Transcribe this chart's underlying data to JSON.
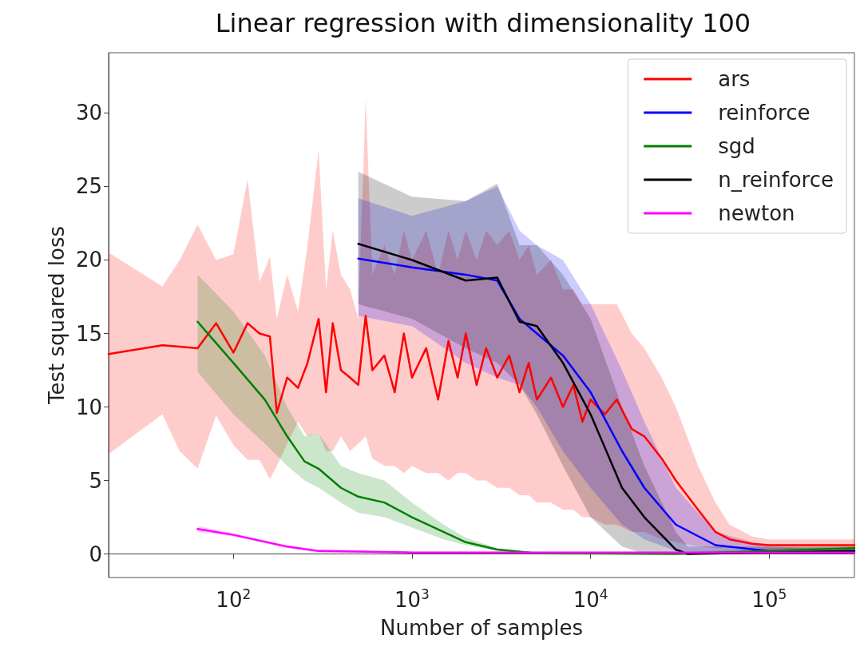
{
  "chart_data": {
    "type": "line",
    "title": "Linear regression with dimensionality 100",
    "xlabel": "Number of samples",
    "ylabel": "Test squared loss",
    "log": "x",
    "legend": "top right",
    "xlim": [
      20,
      300000
    ],
    "xticks": [
      {
        "value": 100,
        "label": "10$^{2}$"
      },
      {
        "value": 1000,
        "label": "10$^{3}$"
      },
      {
        "value": 10000,
        "label": "10$^{4}$"
      },
      {
        "value": 100000,
        "label": "10$^{5}$"
      }
    ],
    "ylim": [
      -1.6,
      34.1
    ],
    "yticks": [
      0,
      5,
      10,
      15,
      20,
      25,
      30
    ],
    "series": [
      {
        "name": "ars",
        "color": "#ff0000",
        "x": [
          20,
          40,
          50,
          63,
          80,
          100,
          120,
          140,
          160,
          175,
          200,
          230,
          260,
          300,
          330,
          360,
          400,
          450,
          500,
          550,
          600,
          700,
          800,
          900,
          1000,
          1200,
          1400,
          1600,
          1800,
          2000,
          2300,
          2600,
          3000,
          3500,
          4000,
          4500,
          5000,
          6000,
          7000,
          8000,
          9000,
          10000,
          12000,
          14000,
          17000,
          20000,
          25000,
          30000,
          40000,
          50000,
          60000,
          80000,
          100000,
          150000,
          200000,
          300000
        ],
        "values": [
          13.6,
          14.2,
          14.1,
          14.0,
          15.7,
          13.7,
          15.7,
          15.0,
          14.8,
          9.6,
          12.0,
          11.3,
          13.0,
          16.0,
          11.0,
          15.7,
          12.5,
          12.0,
          11.5,
          16.2,
          12.5,
          13.5,
          11.0,
          15.0,
          12.0,
          14.0,
          10.5,
          14.5,
          12.0,
          15.0,
          11.5,
          14.0,
          12.0,
          13.5,
          11.0,
          13.0,
          10.5,
          12.0,
          10.0,
          11.5,
          9.0,
          10.5,
          9.5,
          10.5,
          8.5,
          8.0,
          6.5,
          5.0,
          3.0,
          1.5,
          1.0,
          0.7,
          0.6,
          0.6,
          0.6,
          0.6
        ],
        "lower": [
          6.8,
          9.5,
          7.0,
          5.8,
          9.4,
          7.4,
          6.4,
          6.4,
          5.1,
          6.0,
          7.5,
          9.0,
          8.0,
          8.2,
          7.0,
          7.0,
          8.0,
          7.0,
          7.5,
          8.0,
          6.5,
          6.0,
          6.0,
          5.5,
          6.0,
          5.5,
          5.5,
          5.0,
          5.5,
          5.5,
          5.0,
          5.0,
          4.5,
          4.5,
          4.0,
          4.0,
          3.5,
          3.5,
          3.0,
          3.0,
          2.5,
          2.5,
          2.0,
          2.0,
          1.5,
          1.5,
          1.0,
          0.8,
          0.5,
          0.4,
          0.4,
          0.3,
          0.3,
          0.3,
          0.3,
          0.3
        ],
        "upper": [
          20.5,
          18.2,
          20.0,
          22.4,
          20.0,
          20.4,
          25.5,
          18.5,
          20.2,
          16.0,
          19.0,
          16.5,
          21.0,
          27.5,
          18.0,
          22.0,
          19.0,
          18.0,
          16.0,
          31.0,
          19.0,
          21.0,
          19.0,
          22.0,
          20.0,
          22.0,
          19.0,
          22.0,
          20.0,
          22.0,
          20.0,
          22.0,
          21.0,
          22.0,
          20.0,
          21.0,
          19.0,
          20.0,
          18.0,
          18.0,
          17.0,
          17.0,
          17.0,
          17.0,
          15.0,
          14.0,
          12.0,
          10.0,
          6.0,
          3.5,
          2.0,
          1.2,
          1.0,
          1.0,
          1.0,
          1.0
        ]
      },
      {
        "name": "reinforce",
        "color": "#0000ff",
        "x": [
          500,
          1000,
          2000,
          3000,
          4000,
          5000,
          7000,
          10000,
          15000,
          20000,
          30000,
          50000,
          100000,
          300000
        ],
        "values": [
          20.1,
          19.5,
          19.0,
          18.6,
          16.0,
          15.0,
          13.5,
          11.0,
          7.0,
          4.5,
          2.0,
          0.6,
          0.2,
          null
        ],
        "lower": [
          16.2,
          15.5,
          13.0,
          12.0,
          11.5,
          10.0,
          7.0,
          4.5,
          2.0,
          1.0,
          0.2,
          0.1,
          0.0,
          0.0
        ],
        "upper": [
          24.2,
          23.0,
          24.0,
          25.0,
          22.0,
          21.0,
          20.0,
          17.0,
          12.5,
          9.0,
          4.5,
          1.5,
          0.5,
          0.3
        ]
      },
      {
        "name": "sgd",
        "color": "#008000",
        "x": [
          63,
          100,
          150,
          200,
          250,
          300,
          400,
          500,
          700,
          1000,
          1500,
          2000,
          3000,
          5000,
          30000,
          100000,
          300000
        ],
        "values": [
          15.8,
          13.0,
          10.5,
          8.0,
          6.3,
          5.8,
          4.5,
          3.9,
          3.5,
          2.5,
          1.5,
          0.8,
          0.3,
          0.05,
          0.0,
          0.2,
          0.4
        ],
        "lower": [
          12.4,
          9.5,
          7.5,
          6.0,
          5.0,
          4.5,
          3.5,
          2.8,
          2.5,
          1.8,
          1.0,
          0.6,
          0.2,
          0.0,
          0.0,
          0.1,
          0.2
        ],
        "upper": [
          19.0,
          16.5,
          13.5,
          10.0,
          8.0,
          8.2,
          6.0,
          5.5,
          5.0,
          3.5,
          2.0,
          1.1,
          0.4,
          0.1,
          0.1,
          0.4,
          0.5
        ]
      },
      {
        "name": "n_reinforce",
        "color": "#000000",
        "x": [
          500,
          1000,
          2000,
          3000,
          4000,
          5000,
          7000,
          10000,
          15000,
          20000,
          30000,
          35000,
          100000,
          300000
        ],
        "values": [
          21.1,
          20.0,
          18.6,
          18.8,
          15.8,
          15.5,
          13.0,
          9.5,
          4.5,
          2.5,
          0.3,
          0.0,
          0.1,
          0.2
        ],
        "lower": [
          17.0,
          16.0,
          14.0,
          13.0,
          11.5,
          9.5,
          6.0,
          2.5,
          0.5,
          0.0,
          0.0,
          0.0,
          0.0,
          0.0
        ],
        "upper": [
          26.0,
          24.3,
          24.0,
          25.2,
          21.0,
          21.0,
          19.0,
          16.0,
          10.0,
          6.0,
          1.5,
          0.5,
          0.5,
          0.5
        ]
      },
      {
        "name": "newton",
        "color": "#ff00ff",
        "x": [
          63,
          100,
          200,
          300,
          1000,
          300000
        ],
        "values": [
          1.7,
          1.3,
          0.5,
          0.2,
          0.1,
          0.1
        ],
        "lower": [
          1.5,
          1.2,
          0.4,
          0.1,
          0.05,
          0.05
        ],
        "upper": [
          1.9,
          1.4,
          0.6,
          0.3,
          0.15,
          0.15
        ]
      }
    ]
  }
}
